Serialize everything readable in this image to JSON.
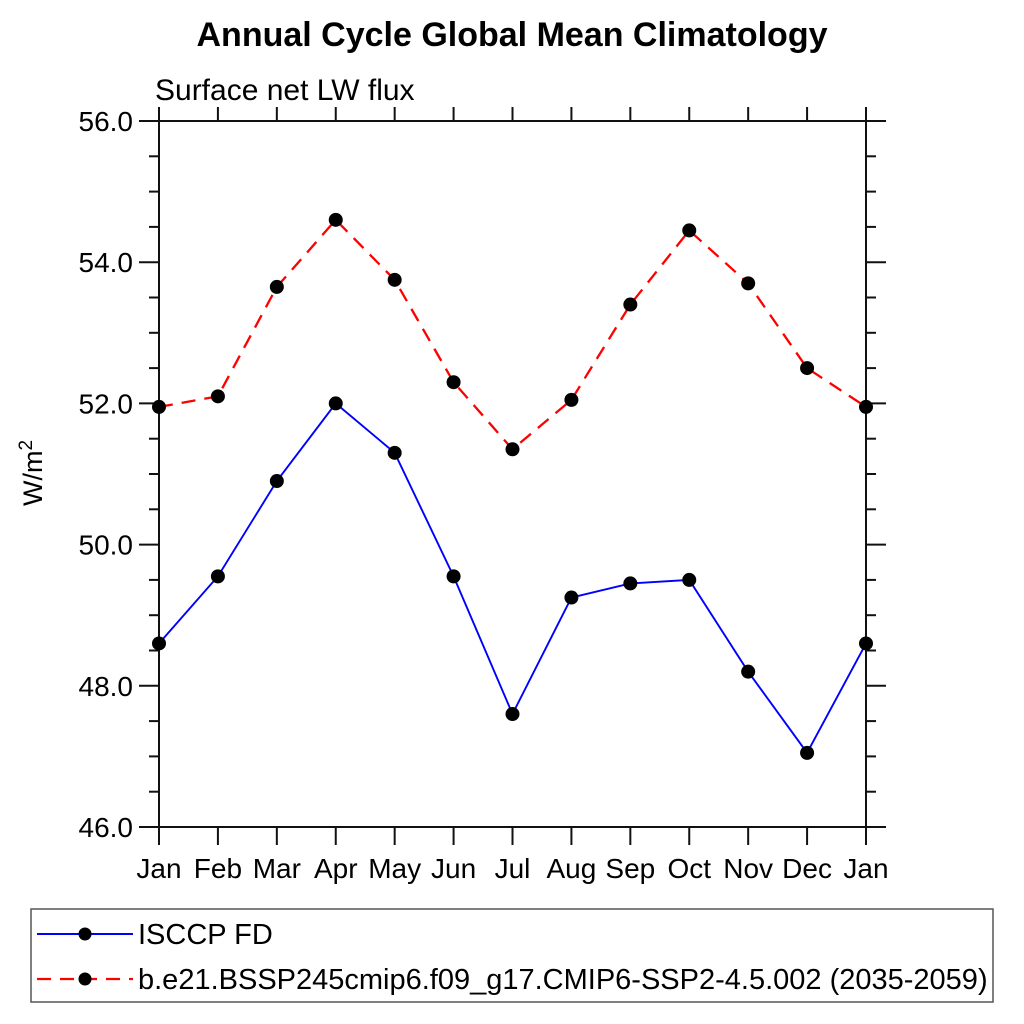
{
  "chart_data": {
    "type": "line",
    "title": "Annual Cycle Global Mean Climatology",
    "subtitle": "Surface net LW flux",
    "ylabel": "W/m²",
    "xlabel": "",
    "categories": [
      "Jan",
      "Feb",
      "Mar",
      "Apr",
      "May",
      "Jun",
      "Jul",
      "Aug",
      "Sep",
      "Oct",
      "Nov",
      "Dec",
      "Jan"
    ],
    "series": [
      {
        "name": "ISCCP FD",
        "color": "#0000ff",
        "line_style": "solid",
        "marker": "filled-black-circle",
        "values": [
          48.6,
          49.55,
          50.9,
          52.0,
          51.3,
          49.55,
          47.6,
          49.25,
          49.45,
          49.5,
          48.2,
          47.05,
          48.6
        ]
      },
      {
        "name": "b.e21.BSSP245cmip6.f09_g17.CMIP6-SSP2-4.5.002 (2035-2059)",
        "color": "#ff0000",
        "line_style": "dashed",
        "marker": "filled-black-circle",
        "values": [
          51.95,
          52.1,
          53.65,
          54.6,
          53.75,
          52.3,
          51.35,
          52.05,
          53.4,
          54.45,
          53.7,
          52.5,
          51.95
        ]
      }
    ],
    "ylim": [
      46.0,
      56.0
    ],
    "ytick_values": [
      46,
      48,
      50,
      52,
      54,
      56
    ],
    "ytick_labels": [
      "46.0",
      "48.0",
      "50.0",
      "52.0",
      "54.0",
      "56.0"
    ],
    "ytick_minor_step": 0.5,
    "grid": false,
    "legend_position": "bottom-left-box",
    "marker_color": "#000000",
    "axis_color": "#111111"
  }
}
